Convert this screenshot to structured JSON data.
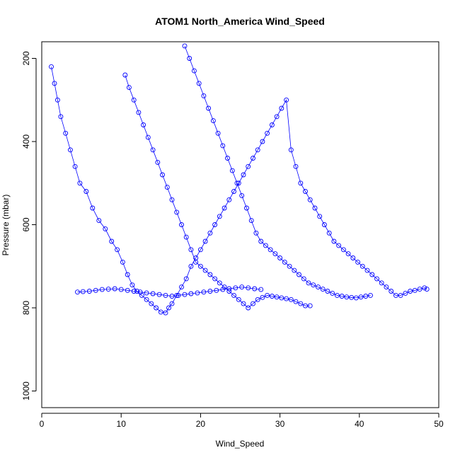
{
  "chart_data": {
    "type": "scatter",
    "title": "ATOM1 North_America Wind_Speed",
    "xlabel": "Wind_Speed",
    "ylabel": "Pressure (mbar)",
    "xlim": [
      0,
      50
    ],
    "ylim": [
      1040,
      160
    ],
    "y_reversed": true,
    "xticks": [
      0,
      10,
      20,
      30,
      40,
      50
    ],
    "yticks": [
      200,
      400,
      600,
      800,
      1000
    ],
    "grid": false,
    "legend": "none",
    "series": [
      {
        "color": "#0000ff",
        "marker": "open-circle",
        "connected": true,
        "x": [
          1.2,
          1.6,
          2.0,
          2.4,
          3.0,
          3.6,
          4.2,
          4.8,
          5.6,
          6.4,
          7.2,
          8.0,
          8.8,
          9.5,
          10.2,
          10.8,
          11.4,
          12.0,
          12.6,
          13.2,
          13.8,
          14.4,
          15.0,
          15.6,
          16.0,
          16.4,
          17.0,
          17.6,
          18.2,
          18.8,
          19.4,
          20.0,
          20.6,
          21.2,
          21.8,
          22.4,
          23.0,
          23.6,
          24.2,
          24.8,
          25.4,
          26.0,
          26.6,
          27.2,
          27.8,
          28.4,
          29.0,
          29.6,
          30.2,
          30.8,
          31.4,
          32.0,
          32.6,
          33.2,
          33.8,
          34.4,
          35.0,
          35.6,
          36.2,
          36.8,
          37.4,
          38.0,
          38.6,
          39.2,
          39.8,
          40.4,
          41.0,
          41.6,
          42.2,
          42.8,
          43.4,
          44.0,
          44.6,
          45.2,
          45.8,
          46.4,
          47.0,
          47.6,
          48.2,
          48.5
        ],
        "y": [
          220,
          260,
          300,
          340,
          380,
          420,
          460,
          500,
          520,
          560,
          590,
          610,
          640,
          660,
          690,
          720,
          745,
          760,
          770,
          780,
          790,
          800,
          810,
          812,
          800,
          790,
          770,
          750,
          730,
          700,
          680,
          660,
          640,
          620,
          600,
          580,
          560,
          540,
          520,
          500,
          480,
          460,
          440,
          420,
          400,
          380,
          360,
          340,
          320,
          300,
          420,
          460,
          500,
          520,
          540,
          560,
          580,
          600,
          620,
          640,
          650,
          660,
          670,
          680,
          690,
          700,
          710,
          720,
          730,
          740,
          750,
          760,
          770,
          770,
          765,
          760,
          758,
          755,
          752,
          755
        ]
      },
      {
        "color": "#0000ff",
        "marker": "open-circle",
        "connected": true,
        "x": [
          10.5,
          11.0,
          11.6,
          12.2,
          12.8,
          13.4,
          14.0,
          14.6,
          15.2,
          15.8,
          16.4,
          17.0,
          17.6,
          18.2,
          18.8,
          19.4,
          20.0,
          20.6,
          21.2,
          21.8,
          22.4,
          23.0,
          23.6,
          24.2,
          24.8,
          25.4,
          26.0,
          26.6,
          27.2,
          27.8,
          28.4,
          29.0,
          29.6,
          30.2,
          30.8,
          31.4,
          32.0,
          32.6,
          33.2,
          33.8
        ],
        "y": [
          240,
          270,
          300,
          330,
          360,
          390,
          420,
          450,
          480,
          510,
          540,
          570,
          600,
          630,
          660,
          690,
          700,
          710,
          720,
          730,
          740,
          750,
          760,
          770,
          780,
          790,
          800,
          790,
          780,
          775,
          770,
          772,
          774,
          776,
          778,
          780,
          785,
          790,
          795,
          795
        ]
      },
      {
        "color": "#0000ff",
        "marker": "open-circle",
        "connected": true,
        "x": [
          18.0,
          18.6,
          19.2,
          19.8,
          20.4,
          21.0,
          21.6,
          22.2,
          22.8,
          23.4,
          24.0,
          24.6,
          25.2,
          25.8,
          26.4,
          27.0,
          27.6,
          28.2,
          28.8,
          29.4,
          30.0,
          30.6,
          31.2,
          31.8,
          32.4,
          33.0,
          33.6,
          34.2,
          34.8,
          35.4,
          36.0,
          36.6,
          37.2,
          37.8,
          38.4,
          39.0,
          39.6,
          40.2,
          40.8,
          41.4
        ],
        "y": [
          170,
          200,
          230,
          260,
          290,
          320,
          350,
          380,
          410,
          440,
          470,
          500,
          530,
          560,
          590,
          620,
          640,
          650,
          660,
          670,
          680,
          690,
          700,
          710,
          720,
          730,
          740,
          745,
          750,
          755,
          760,
          765,
          770,
          772,
          774,
          775,
          776,
          774,
          772,
          770
        ]
      },
      {
        "color": "#0000ff",
        "marker": "open-circle",
        "connected": true,
        "x": [
          4.5,
          5.2,
          6.0,
          6.8,
          7.6,
          8.4,
          9.2,
          10.0,
          10.8,
          11.6,
          12.4,
          13.2,
          14.0,
          14.8,
          15.6,
          16.4,
          17.2,
          18.0,
          18.8,
          19.6,
          20.4,
          21.2,
          22.0,
          22.8,
          23.6,
          24.4,
          25.2,
          26.0,
          26.8,
          27.6
        ],
        "y": [
          762,
          761,
          760,
          758,
          756,
          755,
          754,
          756,
          758,
          760,
          762,
          764,
          766,
          768,
          770,
          772,
          770,
          768,
          766,
          764,
          762,
          760,
          758,
          756,
          754,
          752,
          750,
          752,
          754,
          756
        ]
      }
    ]
  }
}
